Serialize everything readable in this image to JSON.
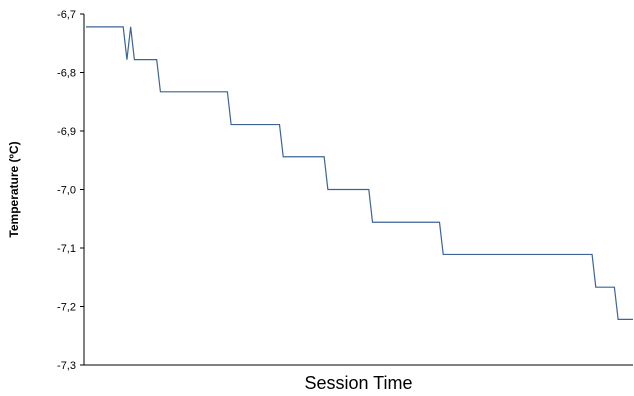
{
  "chart_data": {
    "type": "line",
    "title": "",
    "xlabel": "Session Time",
    "ylabel": "Temperature (ºC)",
    "ylim": [
      -7.3,
      -6.7
    ],
    "y_ticks": [
      "-6,7",
      "-6,8",
      "-6,9",
      "-7,0",
      "-7,1",
      "-7,2",
      "-7,3"
    ],
    "x_ticks_shown": false,
    "grid": false,
    "legend": "none",
    "line_color": "#3c6496",
    "series": [
      {
        "name": "",
        "values": [
          -6.722,
          -6.722,
          -6.722,
          -6.722,
          -6.722,
          -6.722,
          -6.722,
          -6.722,
          -6.722,
          -6.722,
          -6.722,
          -6.778,
          -6.722,
          -6.778,
          -6.778,
          -6.778,
          -6.778,
          -6.778,
          -6.778,
          -6.778,
          -6.833,
          -6.833,
          -6.833,
          -6.833,
          -6.833,
          -6.833,
          -6.833,
          -6.833,
          -6.833,
          -6.833,
          -6.833,
          -6.833,
          -6.833,
          -6.833,
          -6.833,
          -6.833,
          -6.833,
          -6.833,
          -6.833,
          -6.889,
          -6.889,
          -6.889,
          -6.889,
          -6.889,
          -6.889,
          -6.889,
          -6.889,
          -6.889,
          -6.889,
          -6.889,
          -6.889,
          -6.889,
          -6.889,
          -6.944,
          -6.944,
          -6.944,
          -6.944,
          -6.944,
          -6.944,
          -6.944,
          -6.944,
          -6.944,
          -6.944,
          -6.944,
          -6.944,
          -7.0,
          -7.0,
          -7.0,
          -7.0,
          -7.0,
          -7.0,
          -7.0,
          -7.0,
          -7.0,
          -7.0,
          -7.0,
          -7.0,
          -7.056,
          -7.056,
          -7.056,
          -7.056,
          -7.056,
          -7.056,
          -7.056,
          -7.056,
          -7.056,
          -7.056,
          -7.056,
          -7.056,
          -7.056,
          -7.056,
          -7.056,
          -7.056,
          -7.056,
          -7.056,
          -7.056,
          -7.111,
          -7.111,
          -7.111,
          -7.111,
          -7.111,
          -7.111,
          -7.111,
          -7.111,
          -7.111,
          -7.111,
          -7.111,
          -7.111,
          -7.111,
          -7.111,
          -7.111,
          -7.111,
          -7.111,
          -7.111,
          -7.111,
          -7.111,
          -7.111,
          -7.111,
          -7.111,
          -7.111,
          -7.111,
          -7.111,
          -7.111,
          -7.111,
          -7.111,
          -7.111,
          -7.111,
          -7.111,
          -7.111,
          -7.111,
          -7.111,
          -7.111,
          -7.111,
          -7.111,
          -7.111,
          -7.111,
          -7.111,
          -7.167,
          -7.167,
          -7.167,
          -7.167,
          -7.167,
          -7.167,
          -7.222,
          -7.222,
          -7.222,
          -7.222,
          -7.222
        ]
      }
    ]
  }
}
